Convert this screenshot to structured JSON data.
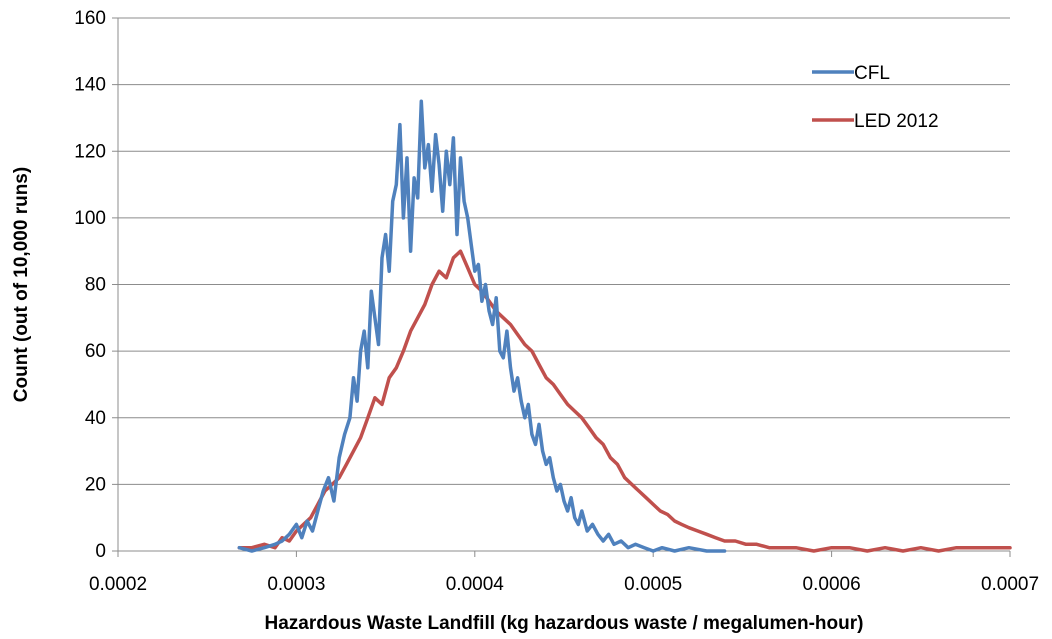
{
  "chart_data": {
    "type": "line",
    "title": "",
    "xlabel": "Hazardous Waste Landfill (kg hazardous waste / megalumen-hour)",
    "ylabel": "Count (out of 10,000 runs)",
    "xlim": [
      0.0002,
      0.0007
    ],
    "ylim": [
      0,
      160
    ],
    "x_ticks": [
      "0.0002",
      "0.0003",
      "0.0004",
      "0.0005",
      "0.0006",
      "0.0007"
    ],
    "y_ticks": [
      "0",
      "20",
      "40",
      "60",
      "80",
      "100",
      "120",
      "140",
      "160"
    ],
    "grid": "horizontal",
    "legend_position": "top-right",
    "series": [
      {
        "name": "CFL",
        "color": "#4F81BD",
        "points": [
          [
            0.000268,
            1
          ],
          [
            0.000275,
            0
          ],
          [
            0.000282,
            1
          ],
          [
            0.000288,
            2
          ],
          [
            0.000292,
            3
          ],
          [
            0.000296,
            5
          ],
          [
            0.0003,
            8
          ],
          [
            0.000303,
            4
          ],
          [
            0.000306,
            9
          ],
          [
            0.000309,
            6
          ],
          [
            0.000312,
            12
          ],
          [
            0.000315,
            18
          ],
          [
            0.000318,
            22
          ],
          [
            0.000321,
            15
          ],
          [
            0.000324,
            28
          ],
          [
            0.000327,
            35
          ],
          [
            0.00033,
            40
          ],
          [
            0.000332,
            52
          ],
          [
            0.000334,
            45
          ],
          [
            0.000336,
            60
          ],
          [
            0.000338,
            66
          ],
          [
            0.00034,
            55
          ],
          [
            0.000342,
            78
          ],
          [
            0.000344,
            70
          ],
          [
            0.000346,
            62
          ],
          [
            0.000348,
            88
          ],
          [
            0.00035,
            95
          ],
          [
            0.000352,
            84
          ],
          [
            0.000354,
            105
          ],
          [
            0.000356,
            110
          ],
          [
            0.000358,
            128
          ],
          [
            0.00036,
            100
          ],
          [
            0.000362,
            118
          ],
          [
            0.000364,
            90
          ],
          [
            0.000366,
            112
          ],
          [
            0.000368,
            106
          ],
          [
            0.00037,
            135
          ],
          [
            0.000372,
            115
          ],
          [
            0.000374,
            122
          ],
          [
            0.000376,
            108
          ],
          [
            0.000378,
            125
          ],
          [
            0.00038,
            116
          ],
          [
            0.000382,
            102
          ],
          [
            0.000384,
            120
          ],
          [
            0.000386,
            110
          ],
          [
            0.000388,
            124
          ],
          [
            0.00039,
            95
          ],
          [
            0.000392,
            118
          ],
          [
            0.000394,
            105
          ],
          [
            0.000396,
            100
          ],
          [
            0.000398,
            92
          ],
          [
            0.0004,
            84
          ],
          [
            0.000402,
            86
          ],
          [
            0.000404,
            75
          ],
          [
            0.000406,
            80
          ],
          [
            0.000408,
            72
          ],
          [
            0.00041,
            68
          ],
          [
            0.000412,
            76
          ],
          [
            0.000414,
            60
          ],
          [
            0.000416,
            58
          ],
          [
            0.000418,
            66
          ],
          [
            0.00042,
            55
          ],
          [
            0.000422,
            48
          ],
          [
            0.000424,
            52
          ],
          [
            0.000426,
            45
          ],
          [
            0.000428,
            40
          ],
          [
            0.00043,
            44
          ],
          [
            0.000432,
            35
          ],
          [
            0.000434,
            32
          ],
          [
            0.000436,
            38
          ],
          [
            0.000438,
            30
          ],
          [
            0.00044,
            26
          ],
          [
            0.000442,
            28
          ],
          [
            0.000444,
            22
          ],
          [
            0.000446,
            18
          ],
          [
            0.000448,
            20
          ],
          [
            0.00045,
            15
          ],
          [
            0.000452,
            12
          ],
          [
            0.000454,
            16
          ],
          [
            0.000456,
            10
          ],
          [
            0.000458,
            8
          ],
          [
            0.00046,
            12
          ],
          [
            0.000463,
            6
          ],
          [
            0.000466,
            8
          ],
          [
            0.000469,
            5
          ],
          [
            0.000472,
            3
          ],
          [
            0.000475,
            5
          ],
          [
            0.000478,
            2
          ],
          [
            0.000482,
            3
          ],
          [
            0.000486,
            1
          ],
          [
            0.00049,
            2
          ],
          [
            0.000495,
            1
          ],
          [
            0.0005,
            0
          ],
          [
            0.000505,
            1
          ],
          [
            0.000512,
            0
          ],
          [
            0.00052,
            1
          ],
          [
            0.00053,
            0
          ],
          [
            0.00054,
            0
          ]
        ]
      },
      {
        "name": "LED 2012",
        "color": "#C0504D",
        "points": [
          [
            0.000268,
            1
          ],
          [
            0.000275,
            1
          ],
          [
            0.000282,
            2
          ],
          [
            0.000288,
            1
          ],
          [
            0.000292,
            4
          ],
          [
            0.000296,
            3
          ],
          [
            0.0003,
            6
          ],
          [
            0.000304,
            8
          ],
          [
            0.000308,
            10
          ],
          [
            0.000312,
            14
          ],
          [
            0.000316,
            18
          ],
          [
            0.00032,
            20
          ],
          [
            0.000324,
            22
          ],
          [
            0.000328,
            26
          ],
          [
            0.000332,
            30
          ],
          [
            0.000336,
            34
          ],
          [
            0.00034,
            40
          ],
          [
            0.000344,
            46
          ],
          [
            0.000348,
            44
          ],
          [
            0.000352,
            52
          ],
          [
            0.000356,
            55
          ],
          [
            0.00036,
            60
          ],
          [
            0.000364,
            66
          ],
          [
            0.000368,
            70
          ],
          [
            0.000372,
            74
          ],
          [
            0.000376,
            80
          ],
          [
            0.00038,
            84
          ],
          [
            0.000384,
            82
          ],
          [
            0.000388,
            88
          ],
          [
            0.000392,
            90
          ],
          [
            0.000396,
            85
          ],
          [
            0.0004,
            80
          ],
          [
            0.000404,
            78
          ],
          [
            0.000408,
            75
          ],
          [
            0.000412,
            72
          ],
          [
            0.000416,
            70
          ],
          [
            0.00042,
            68
          ],
          [
            0.000424,
            65
          ],
          [
            0.000428,
            62
          ],
          [
            0.000432,
            60
          ],
          [
            0.000436,
            56
          ],
          [
            0.00044,
            52
          ],
          [
            0.000444,
            50
          ],
          [
            0.000448,
            47
          ],
          [
            0.000452,
            44
          ],
          [
            0.000456,
            42
          ],
          [
            0.00046,
            40
          ],
          [
            0.000464,
            37
          ],
          [
            0.000468,
            34
          ],
          [
            0.000472,
            32
          ],
          [
            0.000476,
            28
          ],
          [
            0.00048,
            26
          ],
          [
            0.000484,
            22
          ],
          [
            0.000488,
            20
          ],
          [
            0.000492,
            18
          ],
          [
            0.000496,
            16
          ],
          [
            0.0005,
            14
          ],
          [
            0.000504,
            12
          ],
          [
            0.000508,
            11
          ],
          [
            0.000512,
            9
          ],
          [
            0.000516,
            8
          ],
          [
            0.00052,
            7
          ],
          [
            0.000525,
            6
          ],
          [
            0.00053,
            5
          ],
          [
            0.000535,
            4
          ],
          [
            0.00054,
            3
          ],
          [
            0.000546,
            3
          ],
          [
            0.000552,
            2
          ],
          [
            0.000558,
            2
          ],
          [
            0.000565,
            1
          ],
          [
            0.000572,
            1
          ],
          [
            0.00058,
            1
          ],
          [
            0.00059,
            0
          ],
          [
            0.0006,
            1
          ],
          [
            0.00061,
            1
          ],
          [
            0.00062,
            0
          ],
          [
            0.00063,
            1
          ],
          [
            0.00064,
            0
          ],
          [
            0.00065,
            1
          ],
          [
            0.00066,
            0
          ],
          [
            0.00067,
            1
          ],
          [
            0.00068,
            1
          ],
          [
            0.00069,
            1
          ],
          [
            0.0007,
            1
          ]
        ]
      }
    ]
  }
}
